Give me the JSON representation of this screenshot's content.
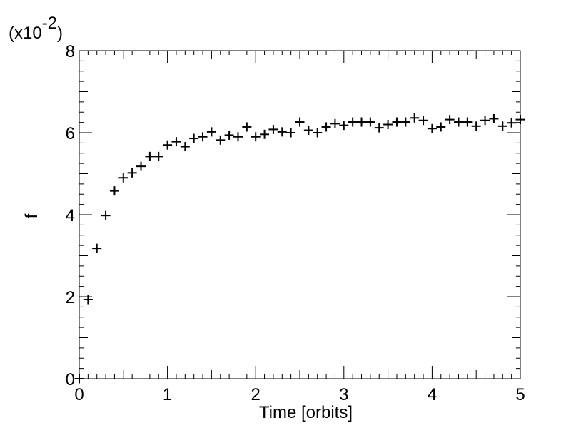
{
  "chart_data": {
    "type": "scatter",
    "marker": "plus",
    "title": "",
    "xlabel": "Time [orbits]",
    "ylabel": "f",
    "y_multiplier_label": "(x10",
    "y_multiplier_exponent": "-2",
    "y_multiplier_close": ")",
    "xlim": [
      0,
      5
    ],
    "ylim": [
      0,
      8
    ],
    "x_ticks": [
      "0",
      "1",
      "2",
      "3",
      "4",
      "5"
    ],
    "y_ticks": [
      "0",
      "2",
      "4",
      "6",
      "8"
    ],
    "grid": false,
    "series": [
      {
        "x": [
          0.0,
          0.1,
          0.2,
          0.3,
          0.4,
          0.5,
          0.6,
          0.7,
          0.8,
          0.9,
          1.0,
          1.1,
          1.2,
          1.3,
          1.4,
          1.5,
          1.6,
          1.7,
          1.8,
          1.9,
          2.0,
          2.1,
          2.2,
          2.3,
          2.4,
          2.5,
          2.6,
          2.7,
          2.8,
          2.9,
          3.0,
          3.1,
          3.2,
          3.3,
          3.4,
          3.5,
          3.6,
          3.7,
          3.8,
          3.9,
          4.0,
          4.1,
          4.2,
          4.3,
          4.4,
          4.5,
          4.6,
          4.7,
          4.8,
          4.9,
          5.0
        ],
        "y": [
          0.0,
          1.93,
          3.18,
          3.98,
          4.58,
          4.9,
          5.02,
          5.18,
          5.42,
          5.42,
          5.7,
          5.78,
          5.66,
          5.86,
          5.9,
          6.02,
          5.82,
          5.94,
          5.9,
          6.14,
          5.9,
          5.96,
          6.08,
          6.02,
          6.0,
          6.26,
          6.06,
          6.0,
          6.14,
          6.22,
          6.18,
          6.26,
          6.26,
          6.26,
          6.12,
          6.2,
          6.26,
          6.26,
          6.36,
          6.3,
          6.1,
          6.14,
          6.32,
          6.26,
          6.26,
          6.16,
          6.3,
          6.34,
          6.16,
          6.24,
          6.32
        ]
      }
    ]
  }
}
